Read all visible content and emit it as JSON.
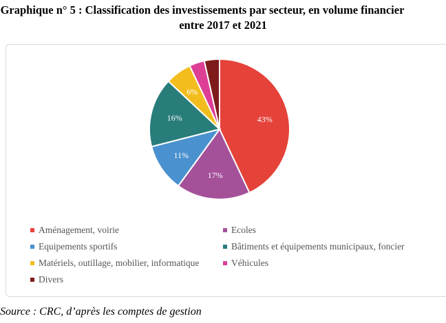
{
  "title_line1": "Graphique n° 5 :  Classification des investissements par secteur, en volume financier",
  "title_line2": "entre 2017 et 2021",
  "source": "Source : CRC, d’après les comptes de gestion",
  "chart_data": {
    "type": "pie",
    "title": "",
    "slices": [
      {
        "label": "Aménagement, voirie",
        "value": 43,
        "display": "43%",
        "color": "#e5423a"
      },
      {
        "label": "Ecoles",
        "value": 17,
        "display": "17%",
        "color": "#a4519a"
      },
      {
        "label": "Equipements sportifs",
        "value": 11,
        "display": "11%",
        "color": "#4a91cf"
      },
      {
        "label": "Bâtiments et équipements municipaux, foncier",
        "value": 16,
        "display": "16%",
        "color": "#287d7b"
      },
      {
        "label": "Matériels, outillage, mobilier, informatique",
        "value": 6,
        "display": "6%",
        "color": "#f3bd1d"
      },
      {
        "label": "Véhicules",
        "value": 3.5,
        "display": "",
        "color": "#dd3f95"
      },
      {
        "label": "Divers",
        "value": 3.5,
        "display": "",
        "color": "#7e1c1c"
      }
    ],
    "legend_placement": "bottom"
  }
}
